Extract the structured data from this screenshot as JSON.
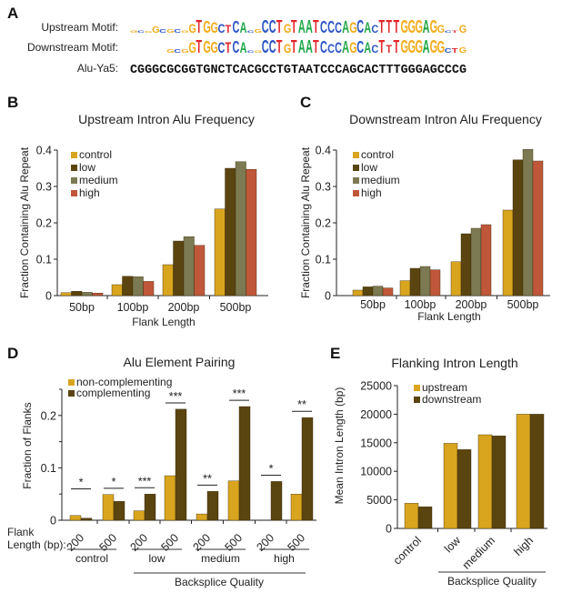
{
  "panel_labels": {
    "a": "A",
    "b": "B",
    "c": "C",
    "d": "D",
    "e": "E"
  },
  "panel_a": {
    "upstream_label": "Upstream Motif:",
    "downstream_label": "Downstream Motif:",
    "alu_label": "Alu-Ya5:",
    "alu_sequence": "CGGGCGCGGTGNCTCACGCCTGTAATCCCAGCACTTTGGGAGCCCG",
    "nucleotide_colors": {
      "A": "#22a84a",
      "C": "#2b55c4",
      "G": "#f2ac1c",
      "T": "#e2262b"
    },
    "upstream_motif": [
      [
        "G",
        0.2
      ],
      [
        "C",
        0.2
      ],
      [
        "G",
        0.15
      ],
      [
        "G",
        0.5
      ],
      [
        "C",
        0.25
      ],
      [
        "G",
        0.25
      ],
      [
        "C",
        0.25
      ],
      [
        "G",
        0.2
      ],
      [
        "G",
        0.7
      ],
      [
        "T",
        1
      ],
      [
        "G",
        0.9
      ],
      [
        "G",
        0.8
      ],
      [
        "C",
        0.7
      ],
      [
        "T",
        0.6
      ],
      [
        "C",
        0.9
      ],
      [
        "A",
        0.8
      ],
      [
        "C",
        0.2
      ],
      [
        "G",
        0.25
      ],
      [
        "C",
        1
      ],
      [
        "C",
        1
      ],
      [
        "T",
        1
      ],
      [
        "G",
        0.7
      ],
      [
        "T",
        1
      ],
      [
        "A",
        1
      ],
      [
        "A",
        1
      ],
      [
        "T",
        1
      ],
      [
        "C",
        0.9
      ],
      [
        "C",
        0.9
      ],
      [
        "C",
        0.8
      ],
      [
        "A",
        0.9
      ],
      [
        "G",
        0.8
      ],
      [
        "C",
        1
      ],
      [
        "A",
        0.8
      ],
      [
        "C",
        0.6
      ],
      [
        "T",
        1
      ],
      [
        "T",
        1
      ],
      [
        "T",
        1
      ],
      [
        "G",
        1
      ],
      [
        "G",
        1
      ],
      [
        "G",
        1
      ],
      [
        "A",
        1
      ],
      [
        "G",
        1
      ],
      [
        "G",
        0.6
      ],
      [
        "C",
        0.2
      ],
      [
        "T",
        0.2
      ],
      [
        "G",
        0.6
      ]
    ],
    "downstream_motif": [
      null,
      null,
      null,
      null,
      null,
      [
        "G",
        0.25
      ],
      [
        "C",
        0.25
      ],
      [
        "G",
        0.25
      ],
      [
        "G",
        0.8
      ],
      [
        "T",
        1
      ],
      [
        "G",
        0.9
      ],
      [
        "G",
        0.85
      ],
      [
        "C",
        0.8
      ],
      [
        "T",
        0.8
      ],
      [
        "C",
        0.9
      ],
      [
        "A",
        0.8
      ],
      [
        "C",
        0.2
      ],
      [
        "G",
        0.2
      ],
      [
        "C",
        1
      ],
      [
        "C",
        1
      ],
      [
        "T",
        1
      ],
      [
        "G",
        0.7
      ],
      [
        "T",
        1
      ],
      [
        "A",
        1
      ],
      [
        "A",
        1
      ],
      [
        "T",
        1
      ],
      [
        "C",
        0.9
      ],
      [
        "C",
        0.7
      ],
      [
        "C",
        0.8
      ],
      [
        "A",
        0.9
      ],
      [
        "G",
        0.8
      ],
      [
        "C",
        0.9
      ],
      [
        "A",
        0.8
      ],
      [
        "C",
        0.6
      ],
      [
        "T",
        1
      ],
      [
        "T",
        0.6
      ],
      [
        "T",
        1
      ],
      [
        "G",
        1
      ],
      [
        "G",
        1
      ],
      [
        "G",
        1
      ],
      [
        "A",
        1
      ],
      [
        "G",
        1
      ],
      [
        "G",
        0.9
      ],
      [
        "C",
        0.35
      ],
      [
        "T",
        0.35
      ],
      [
        "G",
        0.4
      ]
    ]
  },
  "chart_data": [
    {
      "type": "bar",
      "title": "Upstream Intron Alu Frequency",
      "xlabel": "Flank Length",
      "ylabel": "Fraction Containing Alu Repeat",
      "categories": [
        "50bp",
        "100bp",
        "200bp",
        "500bp"
      ],
      "ylim": [
        0,
        0.4
      ],
      "yticks": [
        "0",
        "0.1",
        "0.2",
        "0.3",
        "0.4"
      ],
      "legend": "top-left",
      "series": [
        {
          "name": "control",
          "color": "#d9a51f",
          "values": [
            0.008,
            0.03,
            0.085,
            0.238
          ]
        },
        {
          "name": "low",
          "color": "#5a4410",
          "values": [
            0.012,
            0.053,
            0.15,
            0.35
          ]
        },
        {
          "name": "medium",
          "color": "#7b7a52",
          "values": [
            0.009,
            0.052,
            0.162,
            0.368
          ]
        },
        {
          "name": "high",
          "color": "#c0573a",
          "values": [
            0.007,
            0.039,
            0.138,
            0.347
          ]
        }
      ]
    },
    {
      "type": "bar",
      "title": "Downstream Intron Alu Frequency",
      "xlabel": "Flank Length",
      "ylabel": "Fraction Containing Alu Repeat",
      "categories": [
        "50bp",
        "100bp",
        "200bp",
        "500bp"
      ],
      "ylim": [
        0,
        0.4
      ],
      "yticks": [
        "0",
        "0.1",
        "0.2",
        "0.3",
        "0.4"
      ],
      "legend": "top-left",
      "series": [
        {
          "name": "control",
          "color": "#d9a51f",
          "values": [
            0.015,
            0.041,
            0.093,
            0.235
          ]
        },
        {
          "name": "low",
          "color": "#5a4410",
          "values": [
            0.024,
            0.075,
            0.17,
            0.373
          ]
        },
        {
          "name": "medium",
          "color": "#7b7a52",
          "values": [
            0.026,
            0.08,
            0.185,
            0.402
          ]
        },
        {
          "name": "high",
          "color": "#c0573a",
          "values": [
            0.021,
            0.071,
            0.195,
            0.37
          ]
        }
      ]
    },
    {
      "type": "bar",
      "title": "Alu Element Pairing",
      "ylabel": "Fraction of Flanks",
      "xlabel": "Backsplice Quality",
      "flank_label_1": "Flank",
      "flank_label_2": "Length (bp):",
      "categories": [
        "200",
        "500",
        "200",
        "500",
        "200",
        "500",
        "200",
        "500"
      ],
      "groups": [
        "control",
        "low",
        "medium",
        "high"
      ],
      "ylim": [
        0,
        0.25
      ],
      "yticks": [
        "0",
        "0.1",
        "0.2"
      ],
      "legend": "top-left",
      "significance": [
        "*",
        "*",
        "***",
        "***",
        "**",
        "***",
        "*",
        "**"
      ],
      "series": [
        {
          "name": "non-complementing",
          "color": "#d9a51f",
          "values": [
            0.009,
            0.049,
            0.018,
            0.085,
            0.012,
            0.075,
            0.0,
            0.05
          ]
        },
        {
          "name": "complementing",
          "color": "#5a4410",
          "values": [
            0.004,
            0.036,
            0.05,
            0.212,
            0.055,
            0.217,
            0.074,
            0.196
          ]
        }
      ]
    },
    {
      "type": "bar",
      "title": "Flanking Intron Length",
      "ylabel": "Mean Intron Length (bp)",
      "xlabel": "Backsplice Quality",
      "categories": [
        "control",
        "low",
        "medium",
        "high"
      ],
      "ylim": [
        0,
        25000
      ],
      "yticks": [
        "0",
        "5000",
        "10000",
        "15000",
        "20000",
        "25000"
      ],
      "legend": "top-left",
      "series": [
        {
          "name": "upstream",
          "color": "#d9a51f",
          "values": [
            4400,
            14900,
            16400,
            20000
          ]
        },
        {
          "name": "downstream",
          "color": "#5a4410",
          "values": [
            3800,
            13800,
            16200,
            20000
          ]
        }
      ]
    }
  ]
}
